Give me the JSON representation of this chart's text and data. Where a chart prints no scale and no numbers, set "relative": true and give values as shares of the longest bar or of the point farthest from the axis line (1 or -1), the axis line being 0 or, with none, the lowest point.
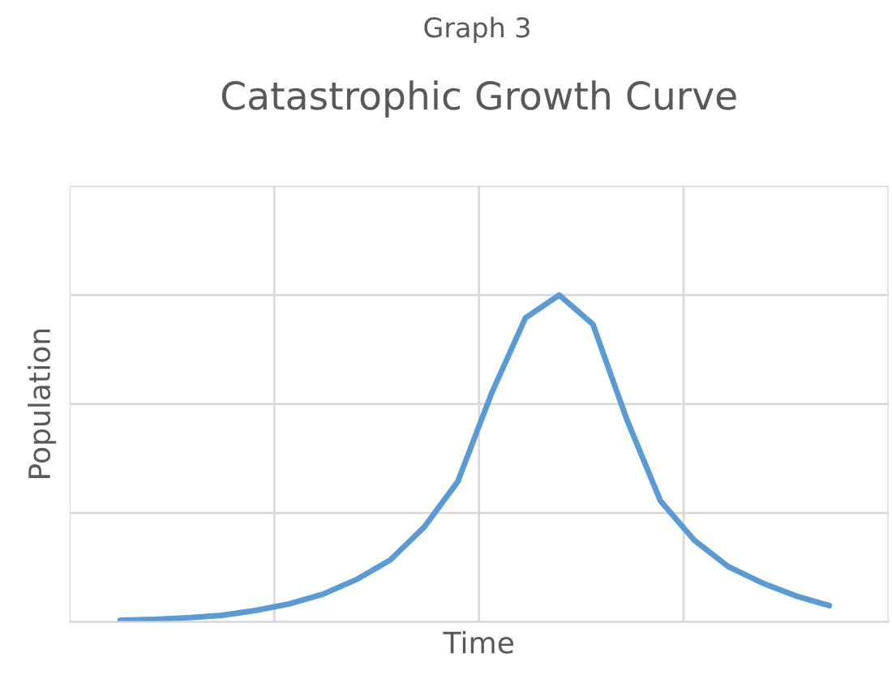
{
  "chart_data": {
    "type": "line",
    "subtitle": "Graph 3",
    "title": "Catastrophic Growth Curve",
    "xlabel": "Time",
    "ylabel": "Population",
    "relative": true,
    "grid": true,
    "legend": false,
    "categories": [
      null,
      null,
      null,
      null,
      null,
      null,
      null,
      null,
      null,
      null,
      null,
      null,
      null,
      null,
      null,
      null,
      null,
      null,
      null,
      null,
      null,
      null
    ],
    "series": [
      {
        "color": "#5b9bd5",
        "values": [
          0.005,
          0.008,
          0.013,
          0.02,
          0.035,
          0.055,
          0.085,
          0.13,
          0.19,
          0.29,
          0.43,
          0.7,
          0.93,
          1.0,
          0.91,
          0.62,
          0.37,
          0.25,
          0.17,
          0.12,
          0.08,
          0.05
        ]
      }
    ]
  }
}
